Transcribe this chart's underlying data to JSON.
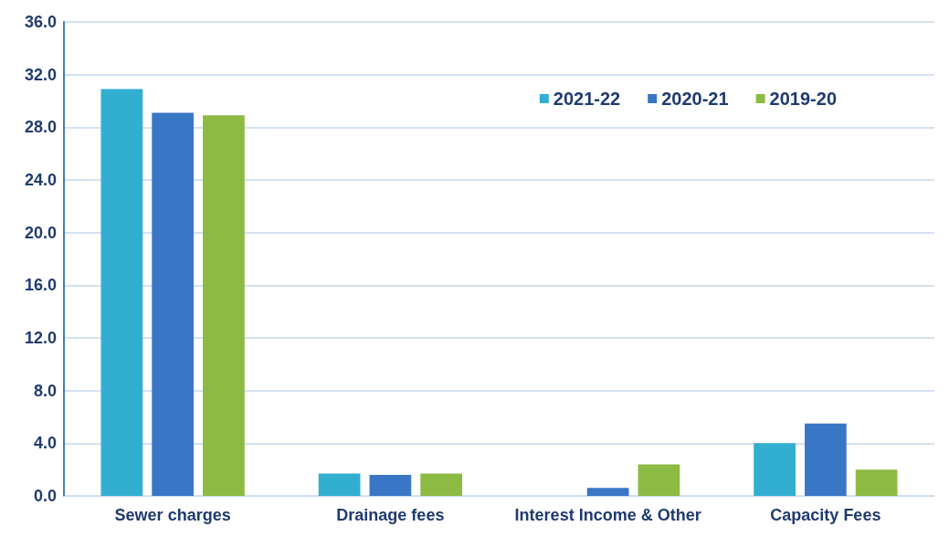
{
  "chart_data": {
    "type": "bar",
    "categories": [
      "Sewer charges",
      "Drainage fees",
      "Interest Income & Other",
      "Capacity Fees"
    ],
    "series": [
      {
        "name": "2021-22",
        "color": "#31aed0",
        "values": [
          30.9,
          1.7,
          null,
          4.0
        ]
      },
      {
        "name": "2020-21",
        "color": "#3a76c6",
        "values": [
          29.1,
          1.6,
          0.6,
          5.5
        ]
      },
      {
        "name": "2019-20",
        "color": "#8dba42",
        "values": [
          28.9,
          1.7,
          2.4,
          2.0
        ]
      }
    ],
    "ylim": [
      0,
      36
    ],
    "yticks": [
      {
        "value": 0,
        "label": "0.0"
      },
      {
        "value": 4,
        "label": "4.0"
      },
      {
        "value": 8,
        "label": "8.0"
      },
      {
        "value": 12,
        "label": "12.0"
      },
      {
        "value": 16,
        "label": "16.0"
      },
      {
        "value": 20,
        "label": "20.0"
      },
      {
        "value": 24,
        "label": "24.0"
      },
      {
        "value": 28,
        "label": "28.0"
      },
      {
        "value": 32,
        "label": "32.0"
      },
      {
        "value": 36,
        "label": "36.0"
      }
    ],
    "grid": "y",
    "legend": "top right"
  }
}
